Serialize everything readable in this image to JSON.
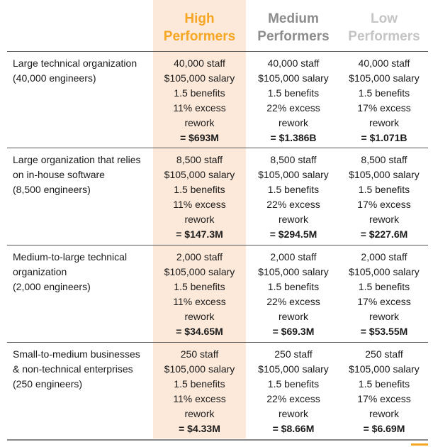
{
  "columns": [
    "High\nPerformers",
    "Medium\nPerformers",
    "Low\nPerformers"
  ],
  "column_colors": {
    "high": "#f5a623",
    "medium": "#8c8c8c",
    "low": "#c4c4c4"
  },
  "rows": [
    {
      "label": "Large technical organization\n(40,000 engineers)",
      "cells": [
        {
          "lines": [
            "40,000 staff",
            "$105,000 salary",
            "1.5 benefits",
            "11% excess",
            "rework"
          ],
          "total": "= $693M"
        },
        {
          "lines": [
            "40,000 staff",
            "$105,000 salary",
            "1.5 benefits",
            "22% excess",
            "rework"
          ],
          "total": "= $1.386B"
        },
        {
          "lines": [
            "40,000 staff",
            "$105,000 salary",
            "1.5 benefits",
            "17% excess",
            "rework"
          ],
          "total": "= $1.071B"
        }
      ]
    },
    {
      "label": "Large organization that relies\non in-house software\n(8,500 engineers)",
      "cells": [
        {
          "lines": [
            "8,500 staff",
            "$105,000 salary",
            "1.5 benefits",
            "11% excess",
            "rework"
          ],
          "total": "= $147.3M"
        },
        {
          "lines": [
            "8,500 staff",
            "$105,000 salary",
            "1.5 benefits",
            "22% excess",
            "rework"
          ],
          "total": "= $294.5M"
        },
        {
          "lines": [
            "8,500 staff",
            "$105,000 salary",
            "1.5 benefits",
            "17% excess",
            "rework"
          ],
          "total": "= $227.6M"
        }
      ]
    },
    {
      "label": "Medium-to-large technical\norganization\n(2,000 engineers)",
      "cells": [
        {
          "lines": [
            "2,000 staff",
            "$105,000 salary",
            "1.5 benefits",
            "11% excess",
            "rework"
          ],
          "total": "= $34.65M"
        },
        {
          "lines": [
            "2,000 staff",
            "$105,000 salary",
            "1.5 benefits",
            "22% excess",
            "rework"
          ],
          "total": "= $69.3M"
        },
        {
          "lines": [
            "2,000 staff",
            "$105,000 salary",
            "1.5 benefits",
            "17% excess",
            "rework"
          ],
          "total": "= $53.55M"
        }
      ]
    },
    {
      "label": "Small-to-medium businesses\n& non-technical enterprises\n(250 engineers)",
      "cells": [
        {
          "lines": [
            "250 staff",
            "$105,000 salary",
            "1.5 benefits",
            "11% excess",
            "rework"
          ],
          "total": "= $4.33M"
        },
        {
          "lines": [
            "250 staff",
            "$105,000 salary",
            "1.5 benefits",
            "22% excess",
            "rework"
          ],
          "total": "= $8.66M"
        },
        {
          "lines": [
            "250 staff",
            "$105,000 salary",
            "1.5 benefits",
            "17% excess",
            "rework"
          ],
          "total": "= $6.69M"
        }
      ]
    }
  ]
}
